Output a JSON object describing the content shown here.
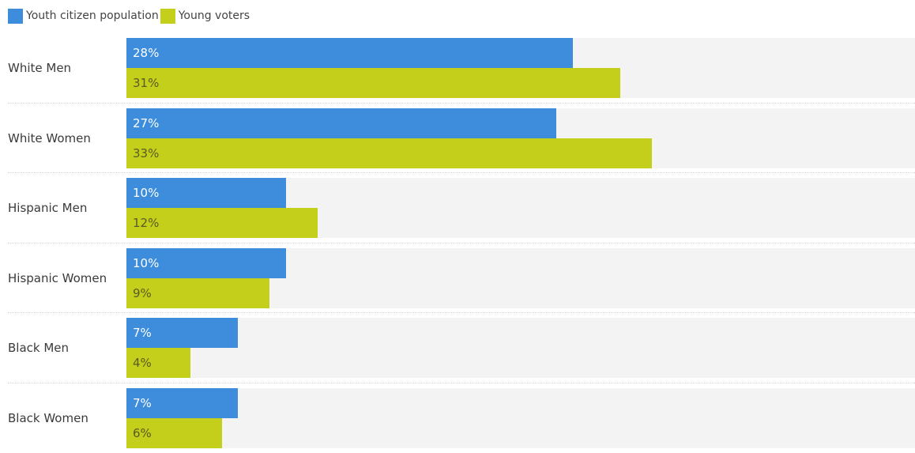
{
  "chart_data": {
    "type": "bar",
    "orientation": "horizontal",
    "categories": [
      "White Men",
      "White Women",
      "Hispanic Men",
      "Hispanic Women",
      "Black Men",
      "Black Women"
    ],
    "series": [
      {
        "name": "Youth citizen population",
        "color": "#3e8ddd",
        "values": [
          28,
          27,
          10,
          10,
          7,
          7
        ],
        "labels": [
          "28%",
          "27%",
          "10%",
          "10%",
          "7%",
          "7%"
        ]
      },
      {
        "name": "Young voters",
        "color": "#c4cf1b",
        "values": [
          31,
          33,
          12,
          9,
          4,
          6
        ],
        "labels": [
          "31%",
          "33%",
          "12%",
          "9%",
          "4%",
          "6%"
        ]
      }
    ],
    "xlim": [
      0,
      49.5
    ],
    "legend_position": "top-left",
    "grid": false,
    "track_color": "#f3f3f3"
  }
}
